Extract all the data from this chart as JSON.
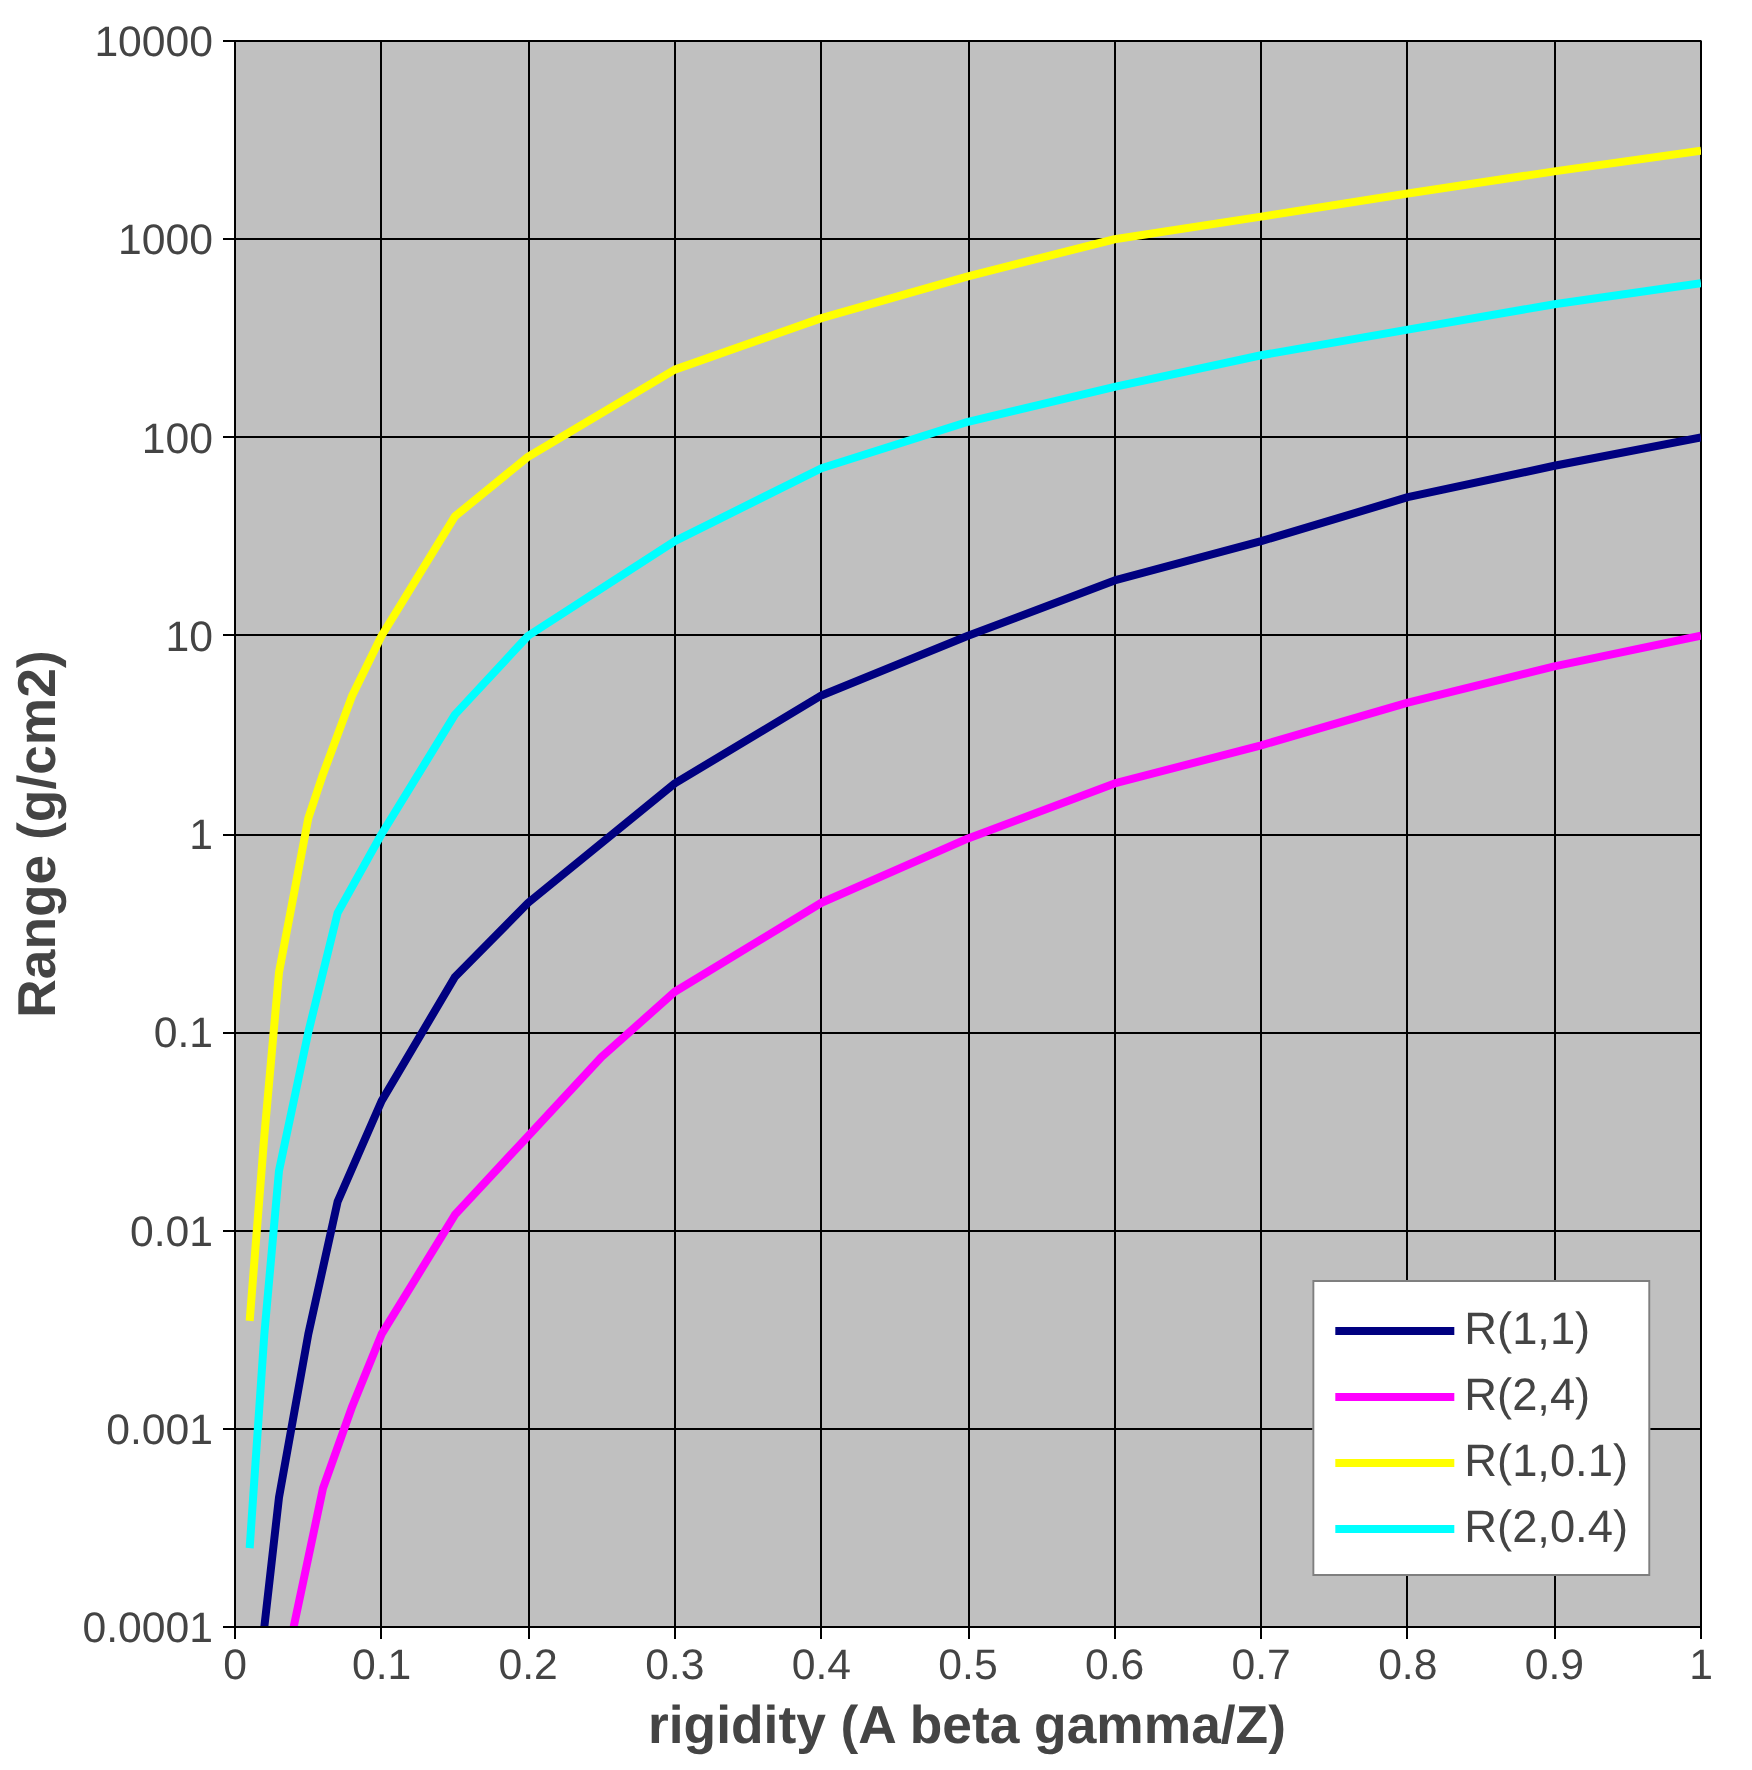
{
  "chart_data": {
    "type": "line",
    "xlabel": "rigidity (A beta gamma/Z)",
    "ylabel": "Range (g/cm2)",
    "log": "y",
    "grid": true,
    "legend": "bottom right",
    "line_style": "solid",
    "marker": "none",
    "xlim": [
      0,
      1
    ],
    "xticks": [
      0,
      0.1,
      0.2,
      0.3,
      0.4,
      0.5,
      0.6,
      0.7,
      0.8,
      0.9,
      1
    ],
    "ylim": [
      0.0001,
      10000
    ],
    "yticks": [
      0.0001,
      0.001,
      0.01,
      0.1,
      1,
      10,
      100,
      1000,
      10000
    ],
    "series": [
      {
        "name": "R(1,1)",
        "color": "#000080",
        "x": [
          0.02,
          0.03,
          0.05,
          0.07,
          0.1,
          0.15,
          0.2,
          0.3,
          0.4,
          0.5,
          0.6,
          0.7,
          0.8,
          0.9,
          1.0
        ],
        "values": [
          0.0001,
          0.00045,
          0.003,
          0.014,
          0.045,
          0.19,
          0.45,
          1.8,
          5,
          10,
          19,
          30,
          50,
          72,
          100
        ]
      },
      {
        "name": "R(2,4)",
        "color": "#ff00ff",
        "x": [
          0.04,
          0.06,
          0.08,
          0.1,
          0.15,
          0.2,
          0.25,
          0.3,
          0.4,
          0.5,
          0.6,
          0.7,
          0.8,
          0.9,
          1.0
        ],
        "values": [
          0.0001,
          0.0005,
          0.0013,
          0.003,
          0.012,
          0.03,
          0.075,
          0.16,
          0.45,
          0.95,
          1.8,
          2.8,
          4.6,
          7,
          10
        ]
      },
      {
        "name": "R(1,0.1)",
        "color": "#ffff00",
        "x": [
          0.01,
          0.02,
          0.03,
          0.05,
          0.06,
          0.08,
          0.1,
          0.15,
          0.2,
          0.3,
          0.4,
          0.5,
          0.6,
          0.7,
          0.8,
          0.9,
          1.0
        ],
        "values": [
          0.0035,
          0.03,
          0.2,
          1.2,
          2,
          5,
          10,
          40,
          80,
          220,
          400,
          650,
          1000,
          1300,
          1700,
          2200,
          2800
        ]
      },
      {
        "name": "R(2,0.4)",
        "color": "#00ffff",
        "x": [
          0.01,
          0.02,
          0.03,
          0.05,
          0.07,
          0.1,
          0.15,
          0.2,
          0.3,
          0.4,
          0.5,
          0.6,
          0.7,
          0.8,
          0.9,
          1.0
        ],
        "values": [
          0.00025,
          0.003,
          0.02,
          0.1,
          0.4,
          1,
          4,
          10,
          30,
          70,
          120,
          180,
          260,
          350,
          470,
          600
        ]
      }
    ]
  }
}
